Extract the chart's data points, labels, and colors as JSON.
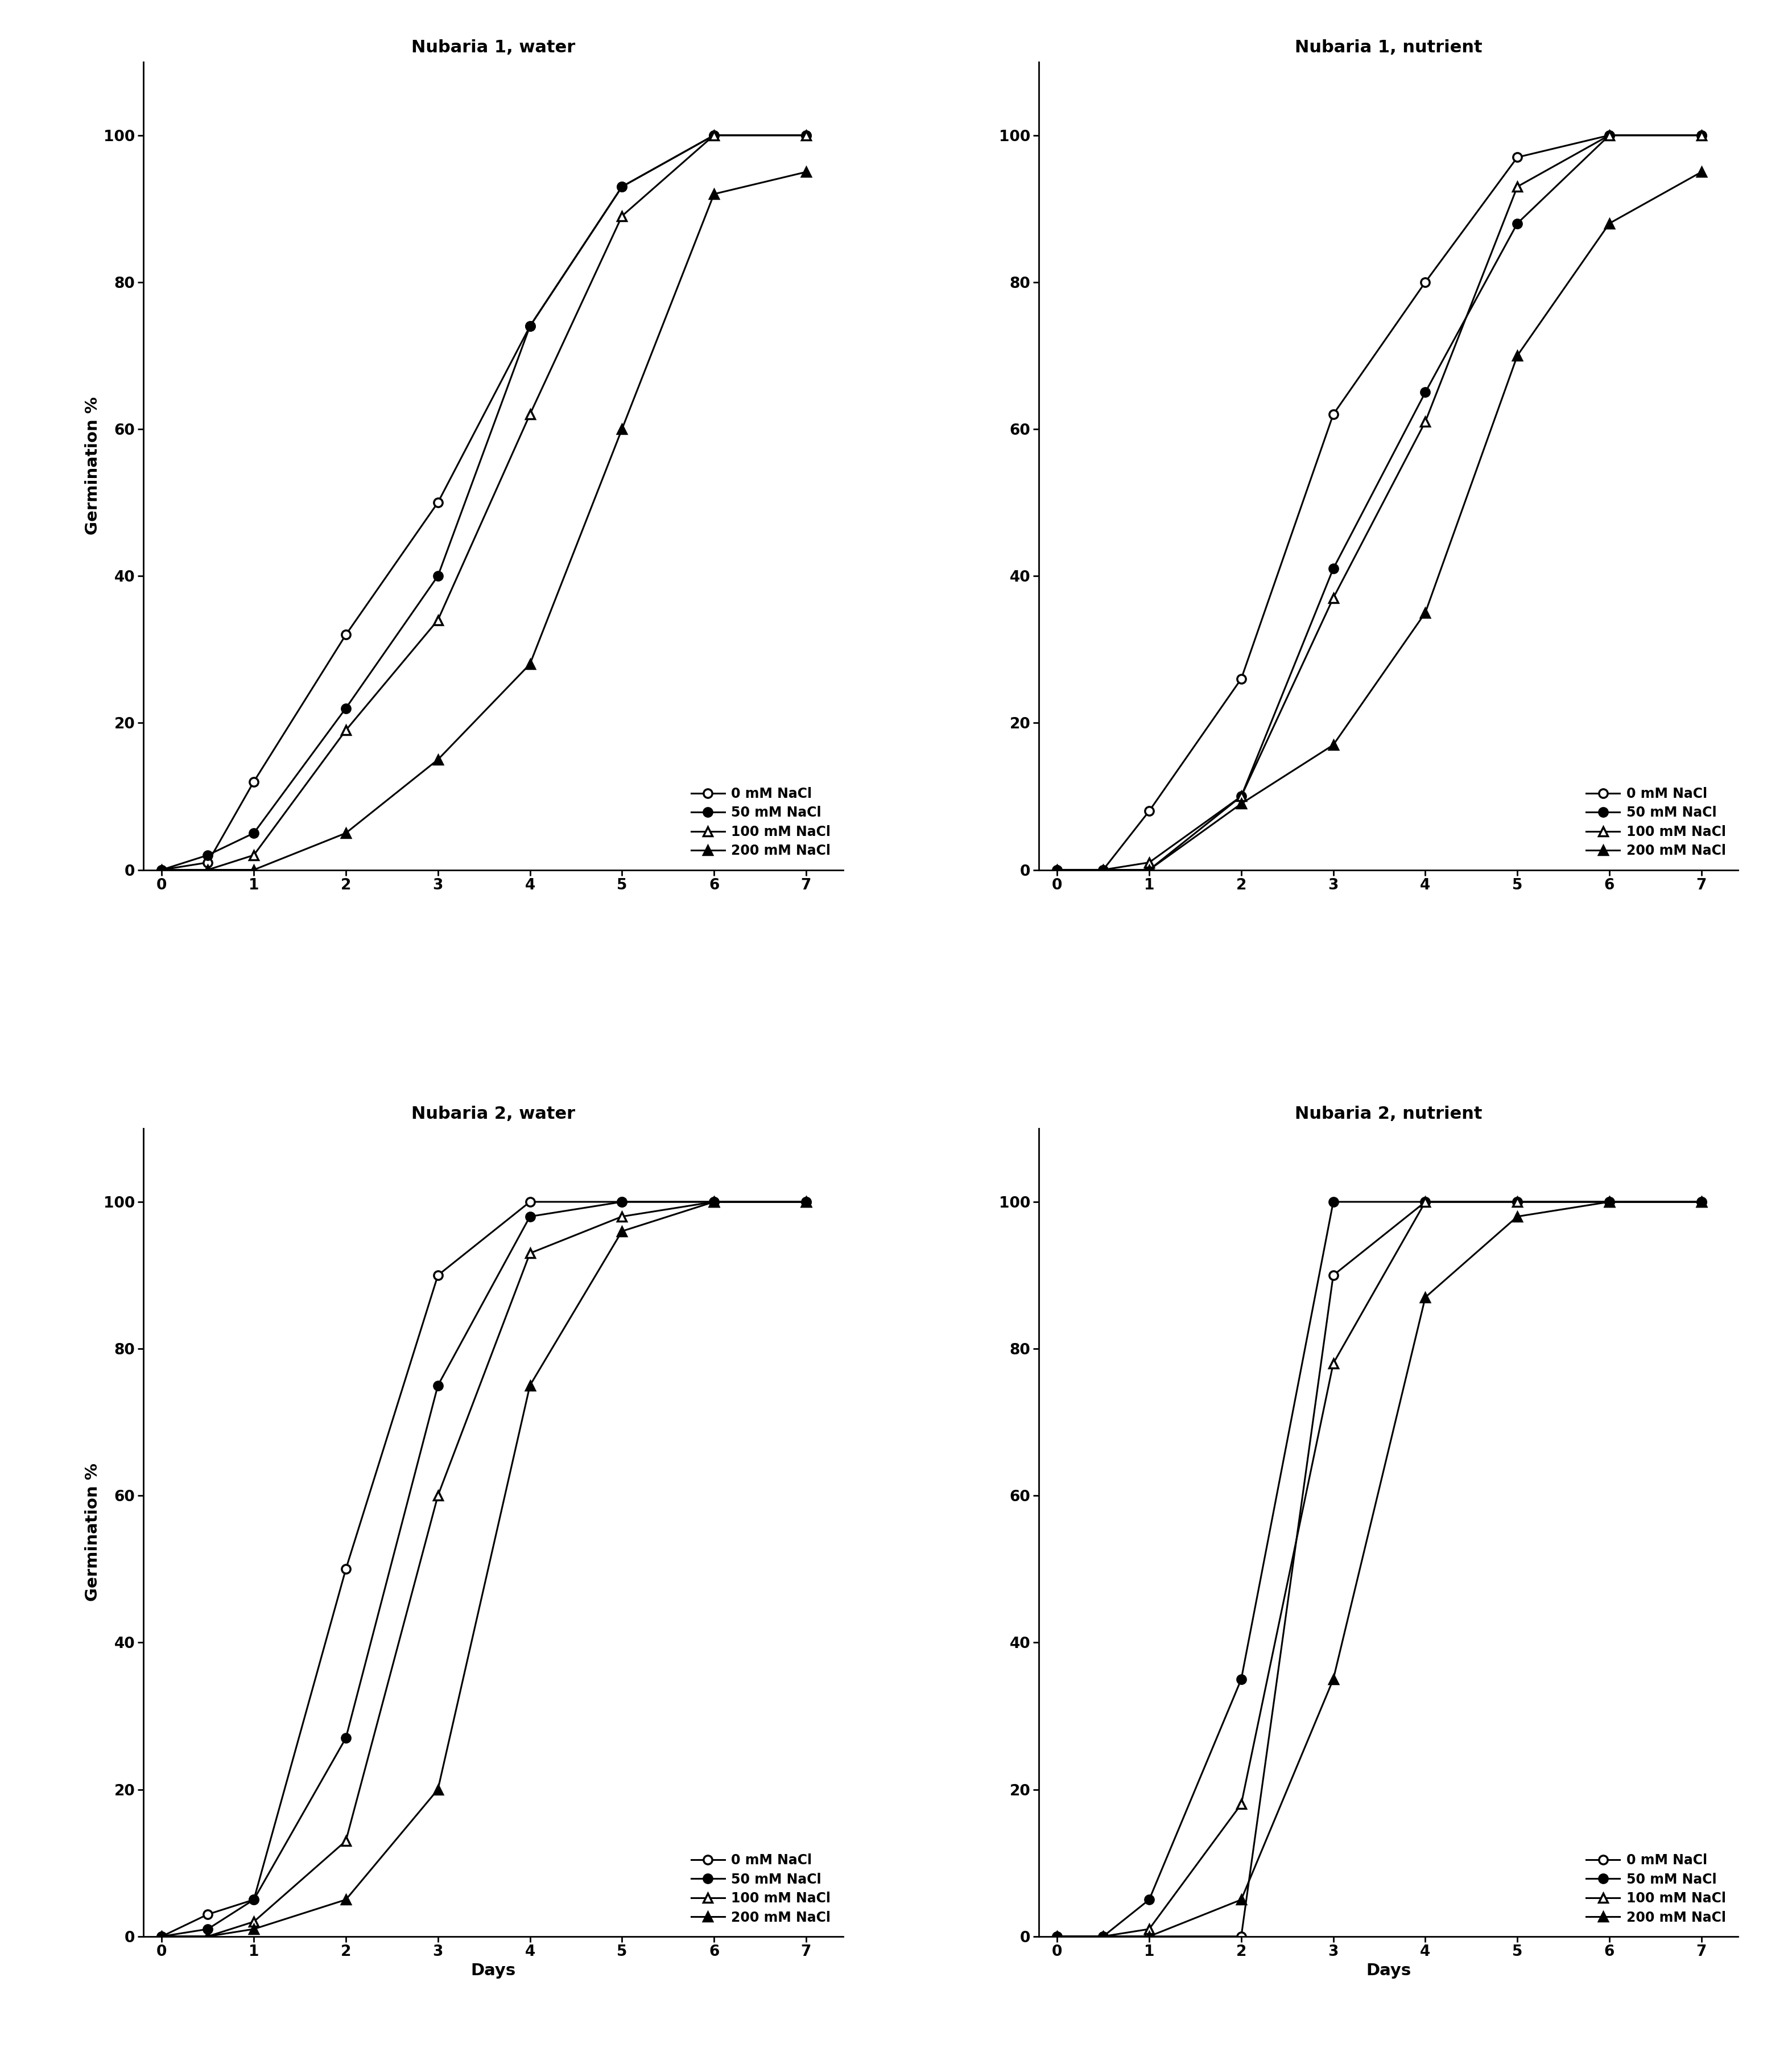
{
  "panels": [
    {
      "title": "Nubaria 1, water",
      "series": [
        {
          "label": "0 mM NaCl",
          "marker": "open_circle",
          "x": [
            0,
            0.5,
            1,
            2,
            3,
            4,
            5,
            6,
            7
          ],
          "y": [
            0,
            1,
            12,
            32,
            50,
            74,
            93,
            100,
            100
          ]
        },
        {
          "label": "50 mM NaCl",
          "marker": "filled_circle",
          "x": [
            0,
            0.5,
            1,
            2,
            3,
            4,
            5,
            6,
            7
          ],
          "y": [
            0,
            2,
            5,
            22,
            40,
            74,
            93,
            100,
            100
          ]
        },
        {
          "label": "100 mM NaCl",
          "marker": "open_triangle",
          "x": [
            0,
            0.5,
            1,
            2,
            3,
            4,
            5,
            6,
            7
          ],
          "y": [
            0,
            0,
            2,
            19,
            34,
            62,
            89,
            100,
            100
          ]
        },
        {
          "label": "200 mM NaCl",
          "marker": "filled_triangle",
          "x": [
            0,
            0.5,
            1,
            2,
            3,
            4,
            5,
            6,
            7
          ],
          "y": [
            0,
            0,
            0,
            5,
            15,
            28,
            60,
            92,
            95
          ]
        }
      ]
    },
    {
      "title": "Nubaria 1, nutrient",
      "series": [
        {
          "label": "0 mM NaCl",
          "marker": "open_circle",
          "x": [
            0,
            0.5,
            1,
            2,
            3,
            4,
            5,
            6,
            7
          ],
          "y": [
            0,
            0,
            8,
            26,
            62,
            80,
            97,
            100,
            100
          ]
        },
        {
          "label": "50 mM NaCl",
          "marker": "filled_circle",
          "x": [
            0,
            0.5,
            1,
            2,
            3,
            4,
            5,
            6,
            7
          ],
          "y": [
            0,
            0,
            0,
            10,
            41,
            65,
            88,
            100,
            100
          ]
        },
        {
          "label": "100 mM NaCl",
          "marker": "open_triangle",
          "x": [
            0,
            0.5,
            1,
            2,
            3,
            4,
            5,
            6,
            7
          ],
          "y": [
            0,
            0,
            1,
            10,
            37,
            61,
            93,
            100,
            100
          ]
        },
        {
          "label": "200 mM NaCl",
          "marker": "filled_triangle",
          "x": [
            0,
            0.5,
            1,
            2,
            3,
            4,
            5,
            6,
            7
          ],
          "y": [
            0,
            0,
            0,
            9,
            17,
            35,
            70,
            88,
            95
          ]
        }
      ]
    },
    {
      "title": "Nubaria 2, water",
      "series": [
        {
          "label": "0 mM NaCl",
          "marker": "open_circle",
          "x": [
            0,
            0.5,
            1,
            2,
            3,
            4,
            5,
            6,
            7
          ],
          "y": [
            0,
            3,
            5,
            50,
            90,
            100,
            100,
            100,
            100
          ]
        },
        {
          "label": "50 mM NaCl",
          "marker": "filled_circle",
          "x": [
            0,
            0.5,
            1,
            2,
            3,
            4,
            5,
            6,
            7
          ],
          "y": [
            0,
            1,
            5,
            27,
            75,
            98,
            100,
            100,
            100
          ]
        },
        {
          "label": "100 mM NaCl",
          "marker": "open_triangle",
          "x": [
            0,
            0.5,
            1,
            2,
            3,
            4,
            5,
            6,
            7
          ],
          "y": [
            0,
            0,
            2,
            13,
            60,
            93,
            98,
            100,
            100
          ]
        },
        {
          "label": "200 mM NaCl",
          "marker": "filled_triangle",
          "x": [
            0,
            0.5,
            1,
            2,
            3,
            4,
            5,
            6,
            7
          ],
          "y": [
            0,
            0,
            1,
            5,
            20,
            75,
            96,
            100,
            100
          ]
        }
      ]
    },
    {
      "title": "Nubaria 2, nutrient",
      "series": [
        {
          "label": "0 mM NaCl",
          "marker": "open_circle",
          "x": [
            0,
            0.5,
            1,
            2,
            3,
            4,
            5,
            6,
            7
          ],
          "y": [
            0,
            0,
            0,
            0,
            90,
            100,
            100,
            100,
            100
          ]
        },
        {
          "label": "50 mM NaCl",
          "marker": "filled_circle",
          "x": [
            0,
            0.5,
            1,
            2,
            3,
            4,
            5,
            6,
            7
          ],
          "y": [
            0,
            0,
            5,
            35,
            100,
            100,
            100,
            100,
            100
          ]
        },
        {
          "label": "100 mM NaCl",
          "marker": "open_triangle",
          "x": [
            0,
            0.5,
            1,
            2,
            3,
            4,
            5,
            6,
            7
          ],
          "y": [
            0,
            0,
            1,
            18,
            78,
            100,
            100,
            100,
            100
          ]
        },
        {
          "label": "200 mM NaCl",
          "marker": "filled_triangle",
          "x": [
            0,
            0.5,
            1,
            2,
            3,
            4,
            5,
            6,
            7
          ],
          "y": [
            0,
            0,
            0,
            5,
            35,
            87,
            98,
            100,
            100
          ]
        }
      ]
    }
  ],
  "ylim": [
    0,
    110
  ],
  "yticks": [
    0,
    20,
    40,
    60,
    80,
    100
  ],
  "xticks": [
    0,
    1,
    2,
    3,
    4,
    5,
    6,
    7
  ],
  "xlabel_bottom": "Days",
  "ylabel": "Germination %",
  "line_color": "black",
  "title_fontsize": 22,
  "label_fontsize": 21,
  "tick_fontsize": 19,
  "legend_fontsize": 17,
  "marker_size": 11,
  "linewidth": 2.2,
  "markeredgewidth": 2.5
}
